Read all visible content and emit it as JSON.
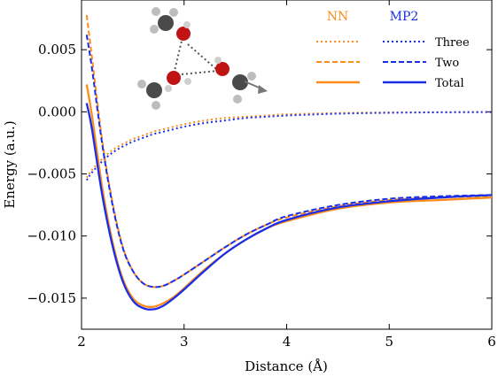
{
  "chart_data": {
    "type": "line",
    "xlabel": "Distance (Å)",
    "ylabel": "Energy (a.u.)",
    "xlim": [
      2,
      6
    ],
    "ylim": [
      -0.0175,
      0.009
    ],
    "x_ticks": [
      "2",
      "3",
      "4",
      "5",
      "6"
    ],
    "y_ticks": [
      "0.005",
      "0.000",
      "−0.005",
      "−0.010",
      "−0.015"
    ],
    "x_tick_values": [
      2,
      3,
      4,
      5,
      6
    ],
    "y_tick_values": [
      0.005,
      0.0,
      -0.005,
      -0.01,
      -0.015
    ],
    "legend": {
      "position": "top-right",
      "groups": [
        "NN",
        "MP2"
      ],
      "rows": [
        "Three",
        "Two",
        "Total"
      ],
      "colors": {
        "NN": "#ff8c1a",
        "MP2": "#1a2ee8"
      }
    },
    "x": [
      2.05,
      2.1,
      2.2,
      2.3,
      2.4,
      2.5,
      2.6,
      2.7,
      2.8,
      2.9,
      3.0,
      3.2,
      3.4,
      3.6,
      3.8,
      4.0,
      4.5,
      5.0,
      5.5,
      6.0
    ],
    "series": [
      {
        "name": "Three",
        "group": "NN",
        "style": "dotted",
        "values": [
          -0.0053,
          -0.0047,
          -0.0038,
          -0.0031,
          -0.0026,
          -0.0022,
          -0.0019,
          -0.0016,
          -0.0014,
          -0.0012,
          -0.001,
          -0.0007,
          -0.0005,
          -0.0004,
          -0.0003,
          -0.0002,
          -0.0001,
          -5e-05,
          -3e-05,
          -2e-05
        ]
      },
      {
        "name": "Three",
        "group": "MP2",
        "style": "dotted",
        "values": [
          -0.0055,
          -0.0049,
          -0.004,
          -0.0033,
          -0.0028,
          -0.0024,
          -0.0021,
          -0.0018,
          -0.0016,
          -0.0014,
          -0.0012,
          -0.0009,
          -0.0007,
          -0.0005,
          -0.0004,
          -0.0003,
          -0.00015,
          -8e-05,
          -4e-05,
          -2e-05
        ]
      },
      {
        "name": "Two",
        "group": "NN",
        "style": "dashed",
        "values": [
          0.0078,
          0.0045,
          -0.0022,
          -0.0072,
          -0.0108,
          -0.0128,
          -0.0138,
          -0.0141,
          -0.014,
          -0.0136,
          -0.0131,
          -0.012,
          -0.0109,
          -0.0099,
          -0.0091,
          -0.0085,
          -0.0076,
          -0.0071,
          -0.0069,
          -0.0068
        ]
      },
      {
        "name": "Two",
        "group": "MP2",
        "style": "dashed",
        "values": [
          0.0062,
          0.0036,
          -0.0025,
          -0.0074,
          -0.0109,
          -0.0128,
          -0.0138,
          -0.0141,
          -0.014,
          -0.0136,
          -0.0131,
          -0.012,
          -0.0109,
          -0.0099,
          -0.0091,
          -0.0084,
          -0.0075,
          -0.007,
          -0.0068,
          -0.0067
        ]
      },
      {
        "name": "Total",
        "group": "NN",
        "style": "solid",
        "values": [
          0.0022,
          -0.0002,
          -0.006,
          -0.0104,
          -0.0134,
          -0.015,
          -0.0156,
          -0.0157,
          -0.0154,
          -0.0149,
          -0.0142,
          -0.0127,
          -0.0114,
          -0.0103,
          -0.0094,
          -0.0088,
          -0.0078,
          -0.0073,
          -0.0071,
          -0.0069
        ]
      },
      {
        "name": "Total",
        "group": "MP2",
        "style": "solid",
        "values": [
          0.0007,
          -0.0013,
          -0.0066,
          -0.0107,
          -0.0136,
          -0.0152,
          -0.0158,
          -0.0159,
          -0.0156,
          -0.015,
          -0.0143,
          -0.0128,
          -0.0114,
          -0.0103,
          -0.0094,
          -0.0087,
          -0.0077,
          -0.0072,
          -0.0069,
          -0.0067
        ]
      }
    ]
  }
}
